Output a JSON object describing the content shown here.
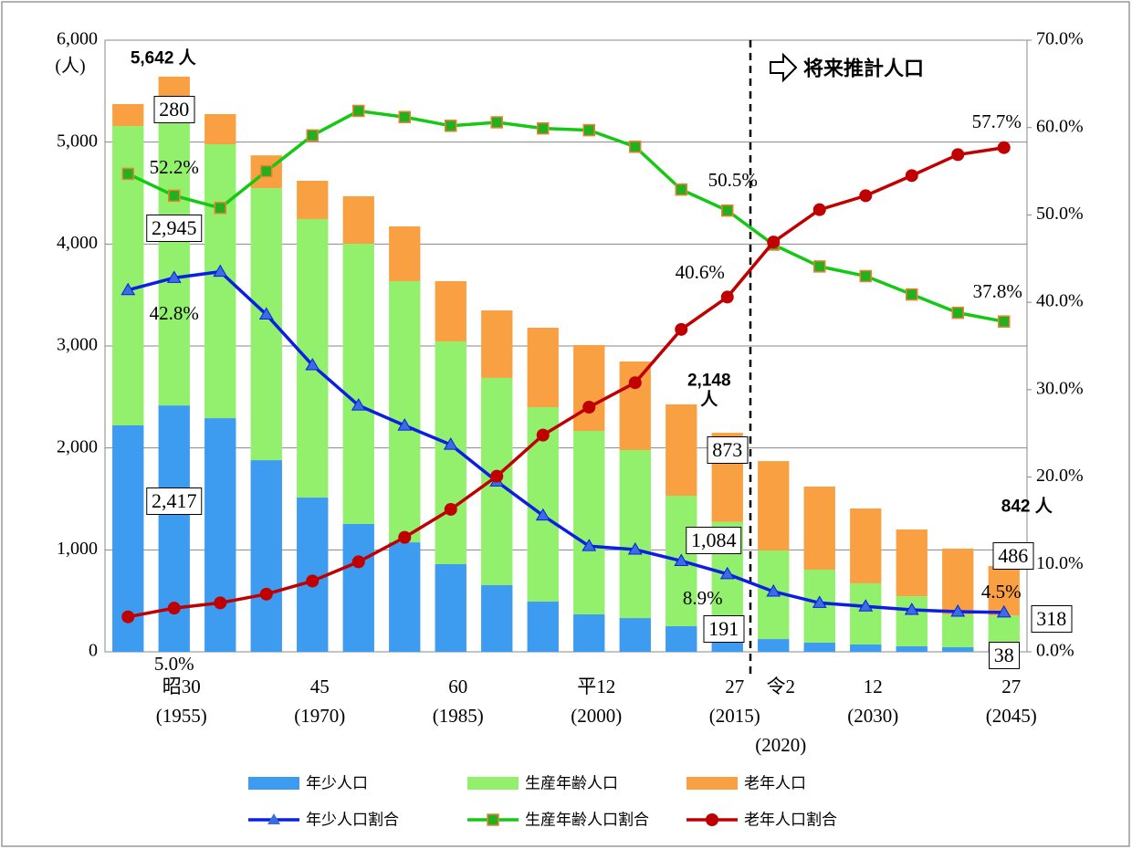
{
  "chart_data": {
    "type": "combo",
    "y_unit_label": "(人)",
    "annotation": "将来推計人口",
    "categories": [
      null,
      "昭30\n(1955)",
      null,
      null,
      "45\n(1970)",
      null,
      null,
      "60\n(1985)",
      null,
      null,
      "平12\n(2000)",
      null,
      null,
      "27\n(2015)",
      "令2\n\n(2020)",
      null,
      "12\n(2030)",
      null,
      null,
      "27\n(2045)"
    ],
    "ylim": [
      0,
      6000
    ],
    "yticks": [
      0,
      {
        "value": 1000,
        "label": "1,000"
      },
      {
        "value": 2000,
        "label": "2,000"
      },
      {
        "value": 3000,
        "label": "3,000"
      },
      {
        "value": 4000,
        "label": "4,000"
      },
      {
        "value": 5000,
        "label": "5,000"
      },
      {
        "value": 6000,
        "label": "6,000"
      }
    ],
    "y2lim": [
      0,
      70
    ],
    "y2ticks": [
      {
        "value": 0,
        "label": "0.0%"
      },
      {
        "value": 10,
        "label": "10.0%"
      },
      {
        "value": 20,
        "label": "20.0%"
      },
      {
        "value": 30,
        "label": "30.0%"
      },
      {
        "value": 40,
        "label": "40.0%"
      },
      {
        "value": 50,
        "label": "50.0%"
      },
      {
        "value": 60,
        "label": "60.0%"
      },
      {
        "value": 70,
        "label": "70.0%"
      }
    ],
    "grid": true,
    "legend": "bottom",
    "totals": [
      null,
      5642,
      null,
      null,
      null,
      null,
      null,
      null,
      null,
      null,
      null,
      null,
      null,
      2148,
      null,
      null,
      null,
      null,
      null,
      842
    ],
    "total_labels": [
      null,
      "5,642 人",
      null,
      null,
      null,
      null,
      null,
      null,
      null,
      null,
      null,
      null,
      null,
      "2,148\n人",
      null,
      null,
      null,
      null,
      null,
      "842 人"
    ],
    "series": [
      {
        "name": "年少人口",
        "type": "bar",
        "color": "#3d9bf0",
        "values": [
          2221,
          2417,
          2292,
          1880,
          1513,
          1254,
          1074,
          860,
          654,
          493,
          367,
          331,
          251,
          191,
          125,
          90,
          72,
          54,
          45,
          38
        ],
        "value_labels": [
          null,
          "2,417",
          null,
          null,
          null,
          null,
          null,
          null,
          null,
          null,
          null,
          null,
          null,
          "191",
          null,
          null,
          null,
          null,
          null,
          "38"
        ]
      },
      {
        "name": "生産年齢人口",
        "type": "bar",
        "color": "#92f06c",
        "values": [
          2937,
          2945,
          2687,
          2669,
          2732,
          2749,
          2562,
          2185,
          2033,
          1907,
          1800,
          1648,
          1280,
          1084,
          869,
          716,
          600,
          492,
          322,
          318
        ],
        "value_labels": [
          null,
          "2,945",
          null,
          null,
          null,
          null,
          null,
          null,
          null,
          null,
          null,
          null,
          null,
          "1,084",
          null,
          null,
          null,
          null,
          null,
          "318"
        ]
      },
      {
        "name": "老年人口",
        "type": "bar",
        "color": "#f9a043",
        "values": [
          215,
          280,
          296,
          321,
          376,
          466,
          537,
          591,
          662,
          779,
          842,
          869,
          896,
          873,
          877,
          815,
          734,
          654,
          645,
          486
        ],
        "value_labels": [
          null,
          "280",
          null,
          null,
          null,
          null,
          null,
          null,
          null,
          null,
          null,
          null,
          null,
          "873",
          null,
          null,
          null,
          null,
          null,
          "486"
        ]
      },
      {
        "name": "年少人口割合",
        "type": "line",
        "axis": "y2",
        "color": "#0a1ee6",
        "marker": "triangle",
        "marker_color": "#3a6ee0",
        "values": [
          41.4,
          42.8,
          43.5,
          38.6,
          32.8,
          28.2,
          25.9,
          23.7,
          19.5,
          15.6,
          12.1,
          11.7,
          10.4,
          8.9,
          6.9,
          5.6,
          5.2,
          4.8,
          4.6,
          4.5
        ],
        "value_labels": [
          null,
          "42.8%",
          null,
          null,
          null,
          null,
          null,
          null,
          null,
          null,
          null,
          null,
          null,
          "8.9%",
          null,
          null,
          null,
          null,
          null,
          "4.5%"
        ]
      },
      {
        "name": "生産年齢人口割合",
        "type": "line",
        "axis": "y2",
        "color": "#14c814",
        "marker": "square",
        "marker_color": "#20b020",
        "values": [
          54.7,
          52.2,
          50.8,
          55.0,
          59.1,
          61.9,
          61.2,
          60.2,
          60.6,
          59.9,
          59.7,
          57.8,
          52.9,
          50.5,
          46.6,
          44.1,
          43.0,
          40.9,
          38.8,
          37.8
        ],
        "value_labels": [
          null,
          "52.2%",
          null,
          null,
          null,
          null,
          null,
          null,
          null,
          null,
          null,
          null,
          null,
          "50.5%",
          null,
          null,
          null,
          null,
          null,
          "37.8%"
        ]
      },
      {
        "name": "老年人口割合",
        "type": "line",
        "axis": "y2",
        "color": "#c00000",
        "marker": "circle",
        "marker_color": "#c00000",
        "values": [
          4.0,
          5.0,
          5.6,
          6.6,
          8.1,
          10.3,
          13.1,
          16.3,
          20.1,
          24.8,
          28.0,
          30.8,
          36.9,
          40.6,
          46.9,
          50.6,
          52.2,
          54.5,
          56.9,
          57.7
        ],
        "value_labels": [
          null,
          "5.0%",
          null,
          null,
          null,
          null,
          null,
          null,
          null,
          null,
          null,
          null,
          null,
          "40.6%",
          null,
          null,
          null,
          null,
          null,
          "57.7%"
        ]
      }
    ]
  }
}
